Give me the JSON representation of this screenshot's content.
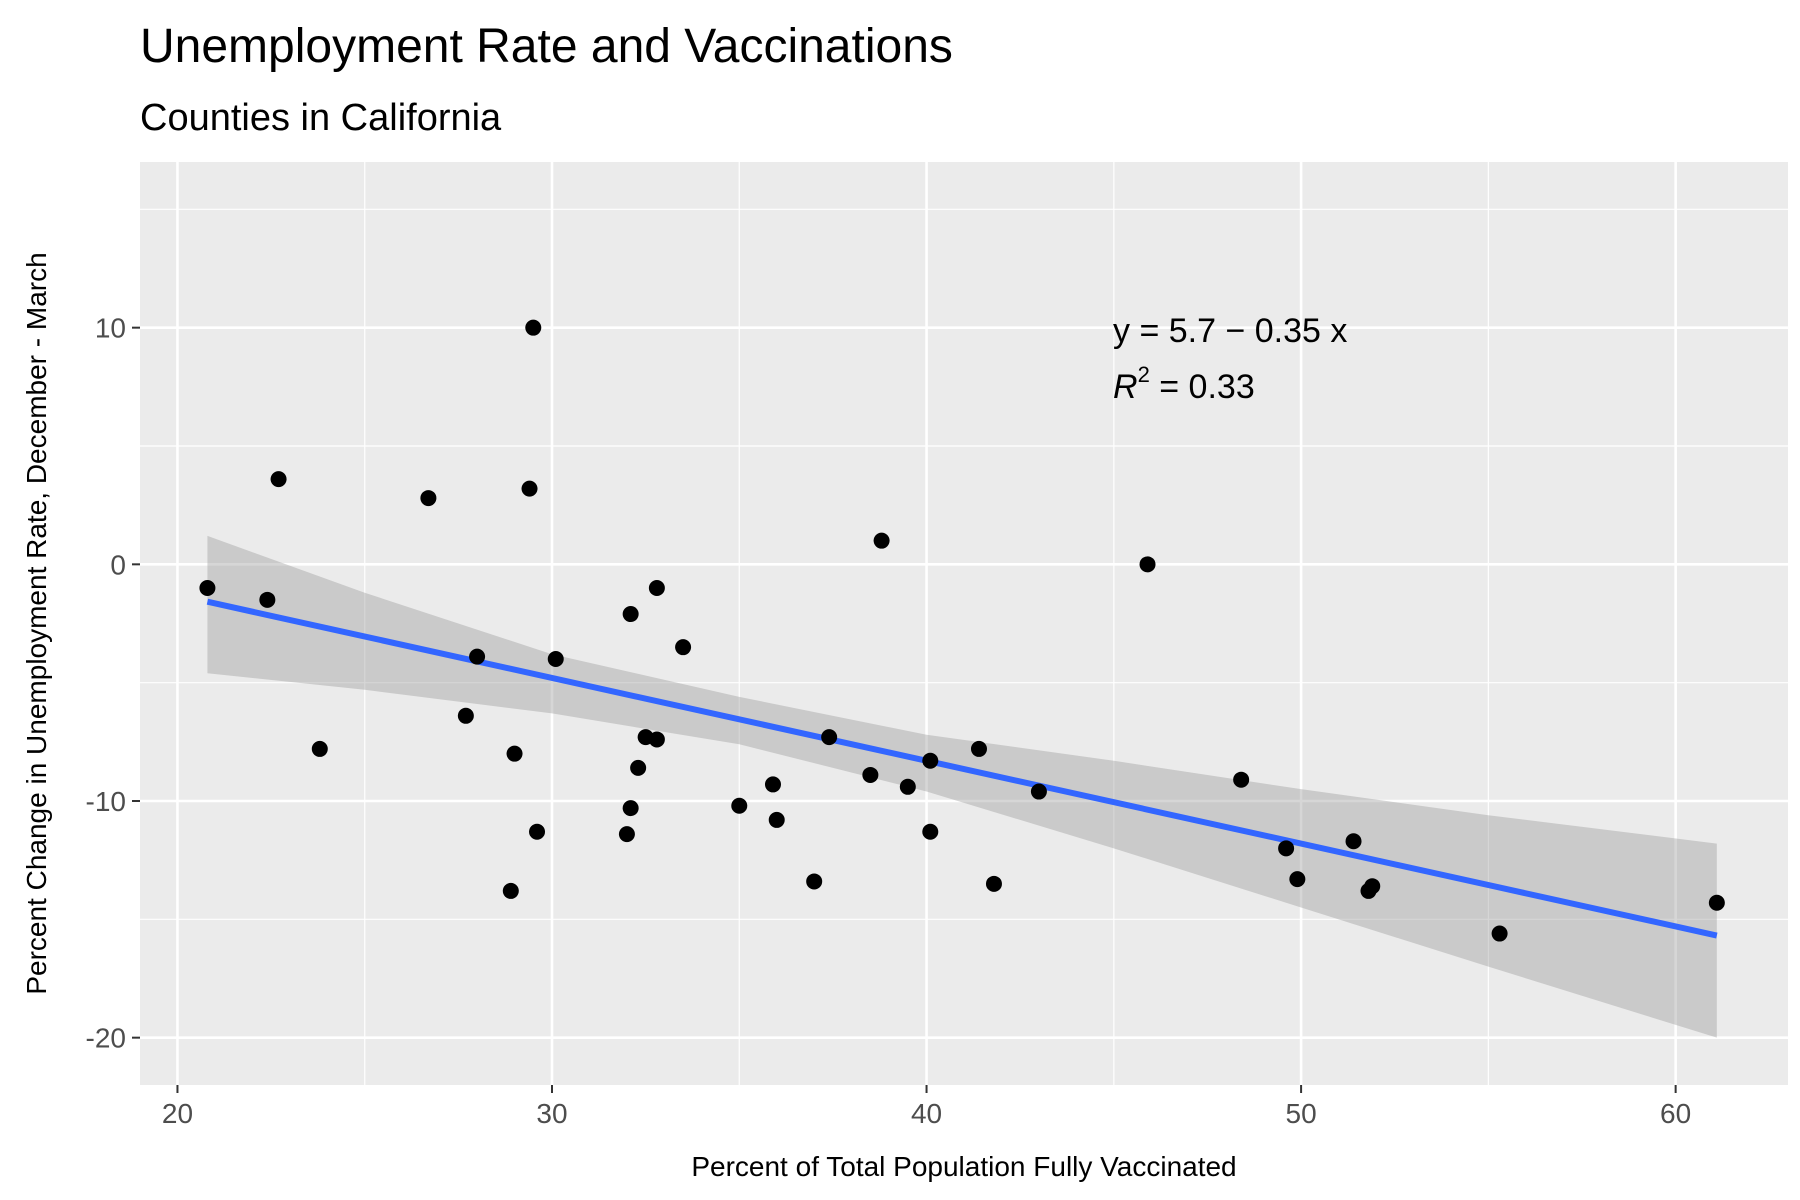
{
  "chart_data": {
    "type": "scatter",
    "title": "Unemployment Rate and Vaccinations",
    "subtitle": "Counties in California",
    "xlabel": "Percent of Total Population Fully Vaccinated",
    "ylabel": "Percent Change in Unemployment Rate, December - March",
    "xlim": [
      19,
      63
    ],
    "ylim": [
      -22,
      17
    ],
    "x_ticks": [
      20,
      30,
      40,
      50,
      60
    ],
    "x_tick_labels": [
      "20",
      "30",
      "40",
      "50",
      "60"
    ],
    "y_ticks": [
      10,
      0,
      -10,
      -20
    ],
    "y_tick_labels": [
      "10",
      "0",
      "-10",
      "-20"
    ],
    "grid": true,
    "points": [
      [
        20.8,
        -1.0
      ],
      [
        22.4,
        -1.5
      ],
      [
        22.7,
        3.6
      ],
      [
        23.8,
        -7.8
      ],
      [
        26.7,
        2.8
      ],
      [
        27.7,
        -6.4
      ],
      [
        28.0,
        -3.9
      ],
      [
        28.9,
        -13.8
      ],
      [
        29.0,
        -8.0
      ],
      [
        29.4,
        3.2
      ],
      [
        29.5,
        10.0
      ],
      [
        29.6,
        -11.3
      ],
      [
        30.1,
        -4.0
      ],
      [
        32.0,
        -11.4
      ],
      [
        32.1,
        -10.3
      ],
      [
        32.1,
        -2.1
      ],
      [
        32.3,
        -8.6
      ],
      [
        32.5,
        -7.3
      ],
      [
        32.8,
        -1.0
      ],
      [
        32.8,
        -7.4
      ],
      [
        33.5,
        -3.5
      ],
      [
        35.0,
        -10.2
      ],
      [
        35.9,
        -9.3
      ],
      [
        36.0,
        -10.8
      ],
      [
        37.0,
        -13.4
      ],
      [
        37.4,
        -7.3
      ],
      [
        38.5,
        -8.9
      ],
      [
        38.8,
        1.0
      ],
      [
        39.5,
        -9.4
      ],
      [
        40.1,
        -8.3
      ],
      [
        40.1,
        -11.3
      ],
      [
        41.4,
        -7.8
      ],
      [
        41.8,
        -13.5
      ],
      [
        43.0,
        -9.6
      ],
      [
        45.9,
        0.0
      ],
      [
        48.4,
        -9.1
      ],
      [
        49.6,
        -12.0
      ],
      [
        49.9,
        -13.3
      ],
      [
        51.4,
        -11.7
      ],
      [
        51.8,
        -13.8
      ],
      [
        51.9,
        -13.6
      ],
      [
        55.3,
        -15.6
      ],
      [
        61.1,
        -14.3
      ]
    ],
    "regression": {
      "intercept": 5.7,
      "slope": -0.35,
      "x_range": [
        20.8,
        61.1
      ],
      "equation_label": "y = 5.7 − 0.35 x",
      "r2_value": "0.33",
      "color": "#3366FF"
    },
    "confidence_band": [
      {
        "x": 20.8,
        "lo": -4.6,
        "hi": 1.2
      },
      {
        "x": 25,
        "lo": -5.3,
        "hi": -1.2
      },
      {
        "x": 30,
        "lo": -6.3,
        "hi": -3.8
      },
      {
        "x": 35,
        "lo": -7.6,
        "hi": -5.6
      },
      {
        "x": 40,
        "lo": -9.6,
        "hi": -7.2
      },
      {
        "x": 45,
        "lo": -12.0,
        "hi": -8.3
      },
      {
        "x": 50,
        "lo": -14.5,
        "hi": -9.5
      },
      {
        "x": 55,
        "lo": -17.0,
        "hi": -10.6
      },
      {
        "x": 61.1,
        "lo": -20.0,
        "hi": -11.8
      }
    ],
    "colors": {
      "panel": "#EBEBEB",
      "grid_major": "#FFFFFF",
      "point": "#000000",
      "band": "#999999"
    }
  }
}
